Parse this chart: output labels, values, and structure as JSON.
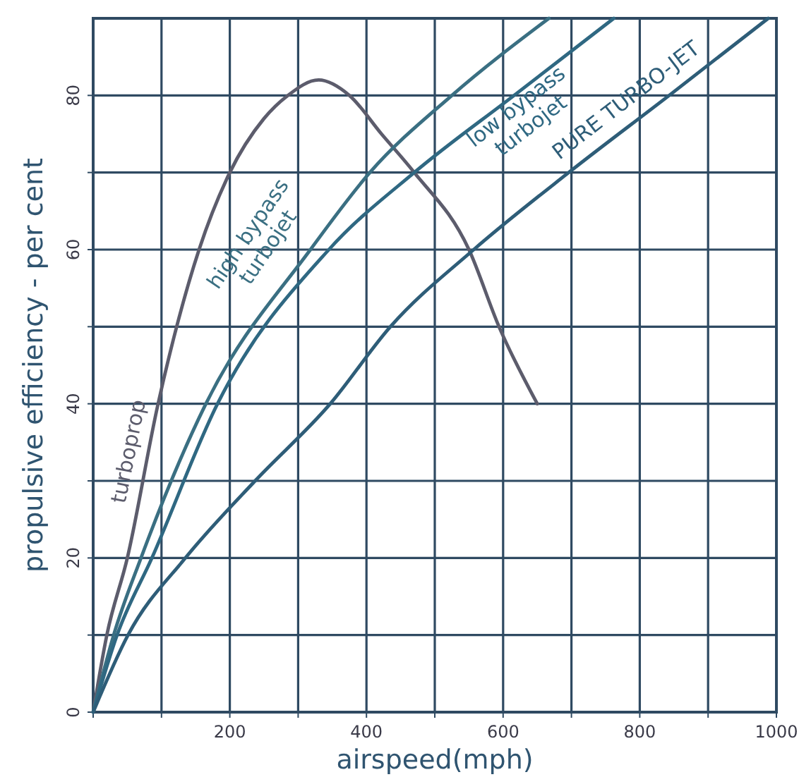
{
  "chart_data": {
    "type": "line",
    "xlabel": "airspeed(mph)",
    "ylabel": "propulsive efficiency - per cent",
    "xlim": [
      0,
      1000
    ],
    "ylim": [
      0,
      90
    ],
    "xticks": [
      {
        "value": 0,
        "label": null
      },
      {
        "value": 100,
        "label": null
      },
      200,
      {
        "value": 300,
        "label": null
      },
      400,
      {
        "value": 500,
        "label": null
      },
      600,
      {
        "value": 700,
        "label": null
      },
      800,
      {
        "value": 900,
        "label": null
      },
      1000
    ],
    "yticks": [
      0,
      {
        "value": 10,
        "label": null
      },
      20,
      {
        "value": 30,
        "label": null
      },
      40,
      {
        "value": 50,
        "label": null
      },
      60,
      {
        "value": 70,
        "label": null
      },
      80
    ],
    "grid": true,
    "marker": "none",
    "line_style": "solid",
    "series": [
      {
        "name": "turboprop",
        "color": "#5c5c6c",
        "x": [
          0,
          20,
          50,
          95,
          155,
          200,
          250,
          285,
          330,
          375,
          422,
          470,
          550,
          594,
          650
        ],
        "values": [
          0,
          10,
          20,
          40,
          60,
          70,
          77,
          80,
          82,
          80,
          75,
          70,
          60,
          50,
          40
        ]
      },
      {
        "name": "high bypass turbojet",
        "color": "#3a6f82",
        "x": [
          0,
          30,
          70,
          165,
          318,
          405,
          525,
          667
        ],
        "values": [
          0,
          10,
          20,
          40,
          60,
          70,
          80,
          90
        ]
      },
      {
        "name": "low bypass turbojet",
        "color": "#2f6882",
        "x": [
          0,
          35,
          86,
          182,
          345,
          470,
          616,
          762
        ],
        "values": [
          0,
          10,
          20,
          40,
          60,
          70,
          80,
          90
        ]
      },
      {
        "name": "PURE TURBO-JET",
        "color": "#2e5d78",
        "x": [
          0,
          51,
          135,
          237,
          347,
          435,
          557,
          696,
          843,
          988
        ],
        "values": [
          0,
          10,
          20,
          30,
          40,
          50,
          60,
          70,
          80,
          90
        ]
      }
    ]
  }
}
